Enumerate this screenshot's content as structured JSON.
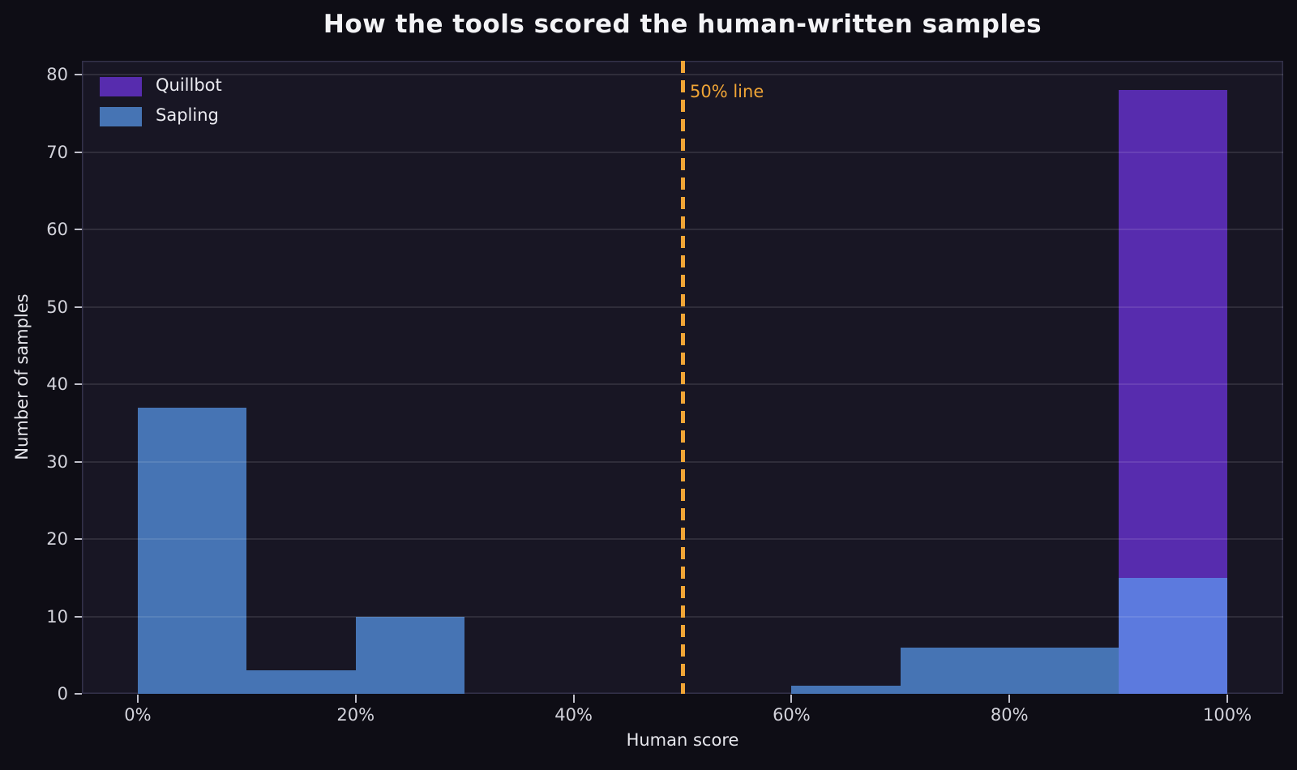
{
  "page": {
    "title": "How the tools scored the human-written samples"
  },
  "chart_data": {
    "type": "bar",
    "subtype": "overlaid-histogram",
    "title": "How the tools scored the human-written samples",
    "xlabel": "Human score",
    "ylabel": "Number of samples",
    "bin_edges_percent": [
      0,
      10,
      20,
      30,
      40,
      50,
      60,
      70,
      80,
      90,
      100
    ],
    "series": [
      {
        "name": "Quillbot",
        "color": "#572cae",
        "values": [
          0,
          0,
          0,
          0,
          0,
          0,
          0,
          0,
          0,
          78
        ]
      },
      {
        "name": "Sapling",
        "color": "#4674b4",
        "overlap_color": "#5c7ade",
        "values": [
          37,
          3,
          10,
          0,
          0,
          0,
          1,
          6,
          6,
          15
        ]
      }
    ],
    "x_ticks": [
      {
        "value": 0,
        "label": "0%"
      },
      {
        "value": 20,
        "label": "20%"
      },
      {
        "value": 40,
        "label": "40%"
      },
      {
        "value": 60,
        "label": "60%"
      },
      {
        "value": 80,
        "label": "80%"
      },
      {
        "value": 100,
        "label": "100%"
      }
    ],
    "y_ticks": [
      0,
      10,
      20,
      30,
      40,
      50,
      60,
      70,
      80
    ],
    "xlim": [
      -5.13,
      105.13
    ],
    "ylim": [
      0,
      81.8
    ],
    "grid": "horizontal",
    "legend": {
      "position": "top-left",
      "entries": [
        "Quillbot",
        "Sapling"
      ]
    },
    "vline": {
      "x": 50,
      "label": "50% line",
      "color": "#f0a536"
    },
    "colors": {
      "background": "#0e0d15",
      "plot_background": "#181624",
      "axis_border": "#33314a",
      "gridline": "rgba(255,255,255,0.10)",
      "tick_mark": "#c0c0ca",
      "tick_text": "#d2d2da",
      "axis_label_text": "#e6e6ec",
      "legend_text": "#eaeaf0",
      "title_text": "#f3f3f6"
    }
  }
}
